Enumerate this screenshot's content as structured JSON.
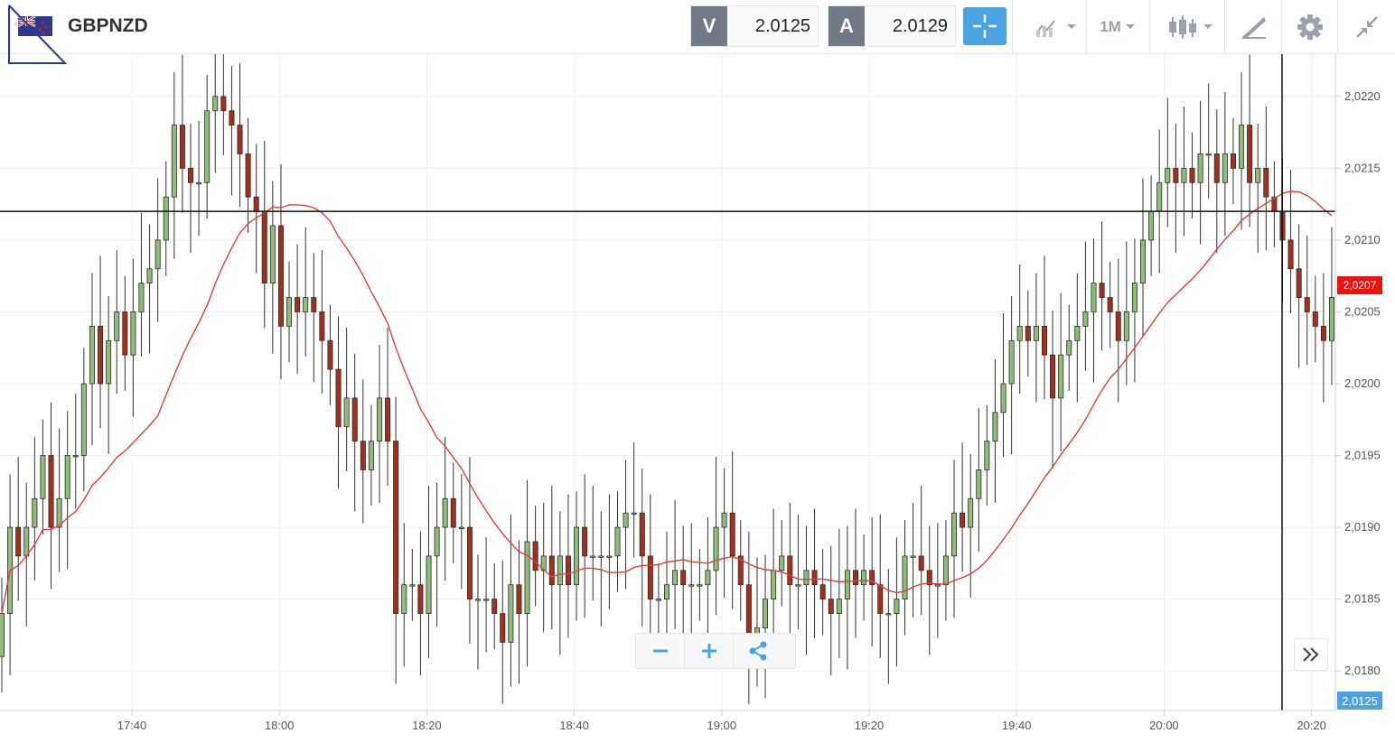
{
  "header": {
    "symbol": "GBPNZD",
    "sell_label": "V",
    "sell_price": "2.0125",
    "buy_label": "A",
    "buy_price": "2.0129",
    "timeframe": "1M",
    "icons": [
      "uk-nz-flag-icon",
      "crosshair-icon",
      "chart-type-icon",
      "indicators-icon",
      "drawing-tools-icon",
      "settings-icon",
      "collapse-icon"
    ]
  },
  "chart": {
    "y_axis": {
      "min": 2.0178,
      "max": 2.0222,
      "ticks": [
        {
          "value": 2.022,
          "label": "2,0220"
        },
        {
          "value": 2.0215,
          "label": "2,0215"
        },
        {
          "value": 2.021,
          "label": "2,0210"
        },
        {
          "value": 2.0205,
          "label": "2,0205"
        },
        {
          "value": 2.02,
          "label": "2,0200"
        },
        {
          "value": 2.0195,
          "label": "2,0195"
        },
        {
          "value": 2.019,
          "label": "2,0190"
        },
        {
          "value": 2.0185,
          "label": "2,0185"
        },
        {
          "value": 2.018,
          "label": "2,0180"
        }
      ]
    },
    "x_axis": {
      "ticks": [
        "17:40",
        "18:00",
        "18:20",
        "18:40",
        "19:00",
        "19:20",
        "19:40",
        "20:00",
        "20:20"
      ]
    },
    "horizontal_line": 2.0212,
    "current_price_label": "2,0207",
    "bid_label": "2,0125",
    "up_color": "#8fbc7a",
    "down_color": "#a3301e",
    "ma_color": "#d9413c",
    "candles_close": [
      2.0184,
      2.019,
      2.0188,
      2.019,
      2.0192,
      2.0195,
      2.019,
      2.0192,
      2.0195,
      2.0195,
      2.02,
      2.0204,
      2.02,
      2.0203,
      2.0205,
      2.0202,
      2.0205,
      2.0207,
      2.0208,
      2.021,
      2.0213,
      2.0218,
      2.0215,
      2.0214,
      2.0214,
      2.0219,
      2.022,
      2.0219,
      2.0218,
      2.0216,
      2.0213,
      2.0212,
      2.0207,
      2.0211,
      2.0204,
      2.0206,
      2.0205,
      2.0206,
      2.0205,
      2.0203,
      2.0201,
      2.0197,
      2.0199,
      2.0196,
      2.0194,
      2.0196,
      2.0199,
      2.0196,
      2.0184,
      2.0186,
      2.0186,
      2.0184,
      2.0188,
      2.019,
      2.0192,
      2.019,
      2.019,
      2.0185,
      2.0185,
      2.0185,
      2.0184,
      2.0182,
      2.0186,
      2.0184,
      2.0189,
      2.0187,
      2.0188,
      2.0186,
      2.0188,
      2.0186,
      2.019,
      2.0188,
      2.0188,
      2.0188,
      2.0188,
      2.019,
      2.0191,
      2.0191,
      2.0188,
      2.0185,
      2.0185,
      2.0186,
      2.0187,
      2.0186,
      2.0186,
      2.0186,
      2.0187,
      2.019,
      2.0191,
      2.0188,
      2.0186,
      2.0182,
      2.0183,
      2.0185,
      2.0187,
      2.0188,
      2.0186,
      2.0186,
      2.0187,
      2.0186,
      2.0185,
      2.0184,
      2.0185,
      2.0187,
      2.0186,
      2.0187,
      2.0186,
      2.0184,
      2.0184,
      2.0185,
      2.0188,
      2.0188,
      2.0187,
      2.0186,
      2.0186,
      2.0188,
      2.0191,
      2.019,
      2.0192,
      2.0194,
      2.0196,
      2.0198,
      2.02,
      2.0203,
      2.0204,
      2.0203,
      2.0204,
      2.0202,
      2.0199,
      2.0202,
      2.0203,
      2.0204,
      2.0205,
      2.0207,
      2.0206,
      2.0205,
      2.0203,
      2.0205,
      2.0207,
      2.021,
      2.0212,
      2.0214,
      2.0215,
      2.0214,
      2.0215,
      2.0214,
      2.0216,
      2.0216,
      2.0214,
      2.0216,
      2.0215,
      2.0218,
      2.0214,
      2.0215,
      2.0213,
      2.0212,
      2.021,
      2.0208,
      2.0206,
      2.0205,
      2.0204,
      2.0203,
      2.0206
    ]
  }
}
